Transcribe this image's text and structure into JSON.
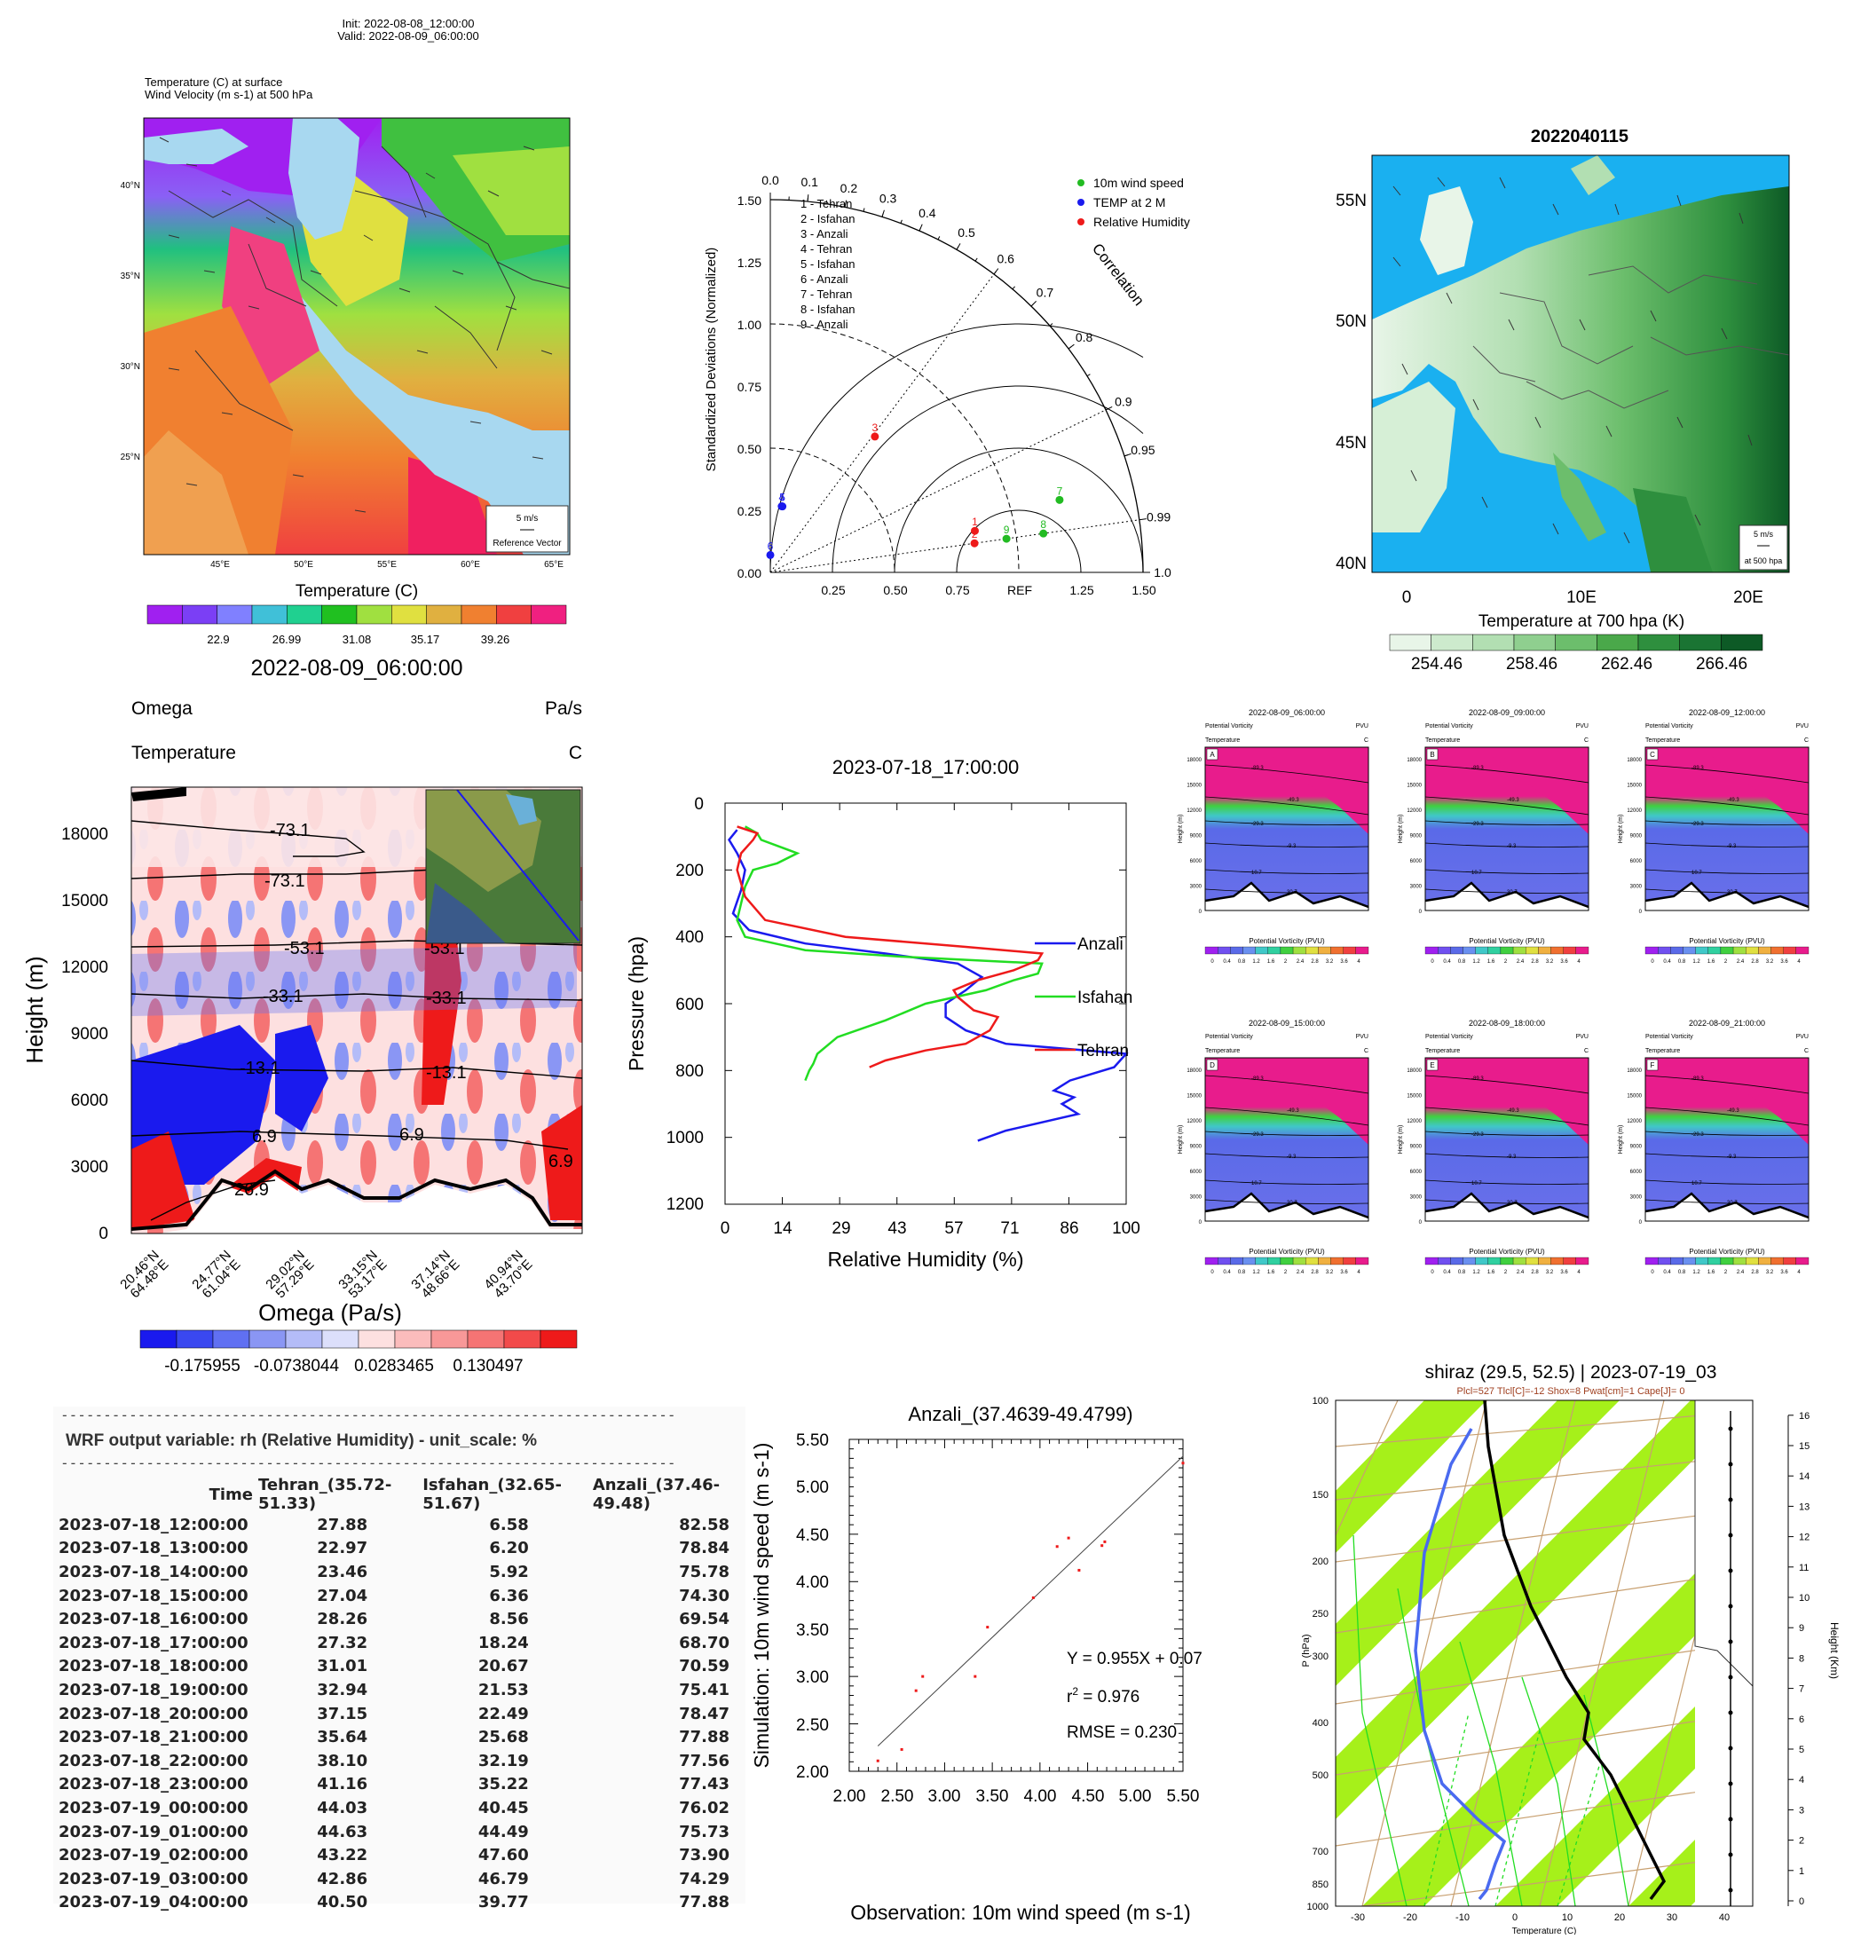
{
  "panel1": {
    "init": "Init: 2022-08-08_12:00:00",
    "valid": "Valid: 2022-08-09_06:00:00",
    "line1": "Temperature   (C)     at   surface",
    "line2": "Wind Velocity   (m s-1)     at    500 hPa",
    "lat_labels": [
      "40°N",
      "35°N",
      "30°N",
      "25°N"
    ],
    "lon_labels": [
      "45°E",
      "50°E",
      "55°E",
      "60°E",
      "65°E"
    ],
    "ref_vector": "5 m/s",
    "ref_vector_label": "Reference Vector",
    "colorbar_title": "Temperature  (C)",
    "colorbar_ticks": [
      "22.9",
      "26.99",
      "31.08",
      "35.17",
      "39.26"
    ],
    "colorbar_colors": [
      "#a020f0",
      "#7b3ff5",
      "#8080ff",
      "#40c0d8",
      "#20d090",
      "#20c020",
      "#a0e040",
      "#e0e040",
      "#e0b040",
      "#f08030",
      "#f04040",
      "#f02080"
    ],
    "time_label": "2022-08-09_06:00:00"
  },
  "panel2": {
    "ylabel": "Standardized Deviations (Normalized)",
    "y_ticks": [
      "0.00",
      "0.25",
      "0.50",
      "0.75",
      "1.00",
      "1.25",
      "1.50"
    ],
    "x_ticks": [
      "0.25",
      "0.50",
      "0.75",
      "REF",
      "1.25",
      "1.50"
    ],
    "corr_ticks": [
      "0.0",
      "0.1",
      "0.2",
      "0.3",
      "0.4",
      "0.5",
      "0.6",
      "0.7",
      "0.8",
      "0.9",
      "0.95",
      "0.99",
      "1.0"
    ],
    "corr_label": "Correlation",
    "stations": [
      "1 - Tehran",
      "2 - Isfahan",
      "3 - Anzali",
      "4 - Tehran",
      "5 - Isfahan",
      "6 - Anzali",
      "7 - Tehran",
      "8 - Isfahan",
      "9 - Anzali"
    ],
    "legend": [
      {
        "label": "10m wind speed",
        "color": "#22bb22"
      },
      {
        "label": "TEMP at 2 M",
        "color": "#1a1aee"
      },
      {
        "label": "Relative Humidity",
        "color": "#ee1a1a"
      }
    ],
    "points": [
      {
        "id": "1",
        "corr": 0.98,
        "std": 0.84,
        "color": "#ee1a1a"
      },
      {
        "id": "2",
        "corr": 0.99,
        "std": 0.83,
        "color": "#ee1a1a"
      },
      {
        "id": "3",
        "corr": 0.61,
        "std": 0.69,
        "color": "#ee1a1a"
      },
      {
        "id": "4",
        "corr": 0.17,
        "std": 0.27,
        "color": "#1a1aee"
      },
      {
        "id": "5",
        "corr": 0.18,
        "std": 0.27,
        "color": "#1a1aee"
      },
      {
        "id": "6",
        "corr": 0.0,
        "std": 0.07,
        "color": "#1a1aee"
      },
      {
        "id": "7",
        "corr": 0.97,
        "std": 1.2,
        "color": "#22bb22"
      },
      {
        "id": "8",
        "corr": 0.99,
        "std": 1.11,
        "color": "#22bb22"
      },
      {
        "id": "9",
        "corr": 0.99,
        "std": 0.96,
        "color": "#22bb22"
      }
    ]
  },
  "panel3": {
    "title": "2022040115",
    "lat_labels": [
      "55N",
      "50N",
      "45N",
      "40N"
    ],
    "lon_labels": [
      "0",
      "10E",
      "20E"
    ],
    "ref_vector": "5 m/s",
    "ref_vector_label": "at 500 hpa",
    "colorbar_title": "Temperature at 700 hpa (K)",
    "colorbar_ticks": [
      "254.46",
      "258.46",
      "262.46",
      "266.46"
    ],
    "colorbar_colors": [
      "#e8f5e8",
      "#cdeacd",
      "#b2dfb2",
      "#8fcf8f",
      "#6cbe6c",
      "#4aa84a",
      "#2e8f3e",
      "#1a7433",
      "#0d5a26"
    ]
  },
  "panel4": {
    "top_left_1": "Omega",
    "top_right_1": "Pa/s",
    "top_left_2": "Temperature",
    "top_right_2": "C",
    "ylabel": "Height (m)",
    "y_ticks": [
      "0",
      "3000",
      "6000",
      "9000",
      "12000",
      "15000",
      "18000"
    ],
    "x_ticks": [
      [
        "20.46°N",
        "64.48°E"
      ],
      [
        "24.77°N",
        "61.04°E"
      ],
      [
        "29.02°N",
        "57.29°E"
      ],
      [
        "33.15°N",
        "53.17°E"
      ],
      [
        "37.14°N",
        "48.66°E"
      ],
      [
        "40.94°N",
        "43.70°E"
      ]
    ],
    "contours": [
      "-73.1",
      "-73.1",
      "-53.1",
      "-53.1",
      "-33.1",
      "-33.1",
      "-13.1",
      "-13.1",
      "6.9",
      "6.9",
      "6.9",
      "26.9"
    ],
    "xlabel": "Omega (Pa/s)",
    "colorbar_ticks": [
      "-0.175955",
      "-0.0738044",
      "0.0283465",
      "0.130497"
    ],
    "colorbar_colors": [
      "#1a1aee",
      "#3a48f0",
      "#6070f2",
      "#8a96f4",
      "#b4bcf8",
      "#dcdffb",
      "#fde0e0",
      "#fbbcbc",
      "#f89898",
      "#f57474",
      "#f24a4a",
      "#ee1a1a"
    ]
  },
  "panel5": {
    "title": "2023-07-18_17:00:00",
    "ylabel": "Pressure (hpa)",
    "xlabel": "Relative Humidity (%)",
    "x_ticks": [
      "0",
      "14",
      "29",
      "43",
      "57",
      "71",
      "86",
      "100"
    ],
    "y_ticks": [
      "0",
      "200",
      "400",
      "600",
      "800",
      "1000",
      "1200"
    ]
  },
  "chart_data": [
    {
      "type": "line",
      "title": "2023-07-18_17:00:00",
      "xlabel": "Relative Humidity (%)",
      "ylabel": "Pressure (hpa)",
      "xlim": [
        0,
        100
      ],
      "ylim": [
        1200,
        0
      ],
      "series": [
        {
          "name": "Anzali",
          "color": "#1a1aee",
          "rh": [
            3,
            1,
            3,
            5,
            4,
            2,
            6,
            20,
            40,
            58,
            64,
            60,
            55,
            55,
            60,
            70,
            100,
            97,
            86,
            82,
            87,
            84,
            88,
            70,
            63
          ],
          "p": [
            80,
            110,
            150,
            200,
            260,
            330,
            380,
            420,
            450,
            480,
            520,
            560,
            600,
            640,
            680,
            720,
            750,
            790,
            830,
            860,
            880,
            900,
            930,
            980,
            1010
          ]
        },
        {
          "name": "Isfahan",
          "color": "#22dd22",
          "rh": [
            5,
            8,
            9,
            18,
            13,
            7,
            5,
            4,
            3,
            5,
            20,
            45,
            79,
            78,
            72,
            65,
            50,
            40,
            28,
            23,
            22,
            21,
            20
          ],
          "p": [
            70,
            90,
            110,
            150,
            180,
            200,
            250,
            300,
            350,
            400,
            440,
            460,
            480,
            510,
            530,
            560,
            600,
            650,
            700,
            750,
            780,
            800,
            830
          ]
        },
        {
          "name": "Tehran",
          "color": "#ee1a1a",
          "rh": [
            3,
            8,
            7,
            4,
            3,
            5,
            10,
            30,
            60,
            79,
            78,
            72,
            63,
            57,
            58,
            60,
            62,
            68,
            66,
            60,
            50,
            40,
            36
          ],
          "p": [
            70,
            90,
            110,
            150,
            200,
            280,
            350,
            400,
            430,
            450,
            470,
            500,
            530,
            560,
            580,
            600,
            620,
            640,
            680,
            720,
            740,
            770,
            790
          ]
        }
      ]
    },
    {
      "type": "scatter",
      "title": "Anzali_(37.4639-49.4799)",
      "xlabel": "Observation: 10m wind speed (m s-1)",
      "ylabel": "Simulation: 10m wind speed (m s-1)",
      "xlim": [
        2.0,
        5.5
      ],
      "ylim": [
        2.0,
        5.5
      ],
      "x": [
        2.3,
        2.55,
        2.7,
        2.77,
        3.32,
        3.45,
        3.93,
        4.18,
        4.3,
        4.41,
        4.65,
        4.68,
        5.5
      ],
      "y": [
        2.11,
        2.23,
        2.85,
        3.0,
        3.0,
        3.52,
        3.83,
        4.37,
        4.46,
        4.12,
        4.38,
        4.42,
        5.25
      ],
      "fit": {
        "slope": 0.955,
        "intercept": 0.07
      }
    }
  ],
  "panel6": {
    "subplots": [
      {
        "letter": "A",
        "time": "2022-08-09_06:00:00"
      },
      {
        "letter": "B",
        "time": "2022-08-09_09:00:00"
      },
      {
        "letter": "C",
        "time": "2022-08-09_12:00:00"
      },
      {
        "letter": "D",
        "time": "2022-08-09_15:00:00"
      },
      {
        "letter": "E",
        "time": "2022-08-09_18:00:00"
      },
      {
        "letter": "F",
        "time": "2022-08-09_21:00:00"
      }
    ],
    "left1": "Potential Vorticity",
    "right1": "PVU",
    "left2": "Temperature",
    "right2": "C",
    "ylabel": "Height (m)",
    "y_ticks": [
      "0",
      "3000",
      "6000",
      "9000",
      "12000",
      "15000",
      "18000"
    ],
    "xlabel": "Potential Vorticity (PVU)",
    "cb_ticks": [
      "0",
      "0.4",
      "0.8",
      "1.2",
      "1.6",
      "2",
      "2.4",
      "2.8",
      "3.2",
      "3.6",
      "4"
    ],
    "contours": [
      "-89.3",
      "-69.3",
      "-49.3",
      "-29.3",
      "-9.3",
      "10.7",
      "30.7"
    ]
  },
  "table": {
    "dashes": "------------------------------------------------------------------------",
    "header_line": "WRF output variable: rh (Relative Humidity) - unit_scale: %",
    "columns": [
      "Time",
      "Tehran_(35.72-51.33)",
      "Isfahan_(32.65-51.67)",
      "Anzali_(37.46-49.48)"
    ],
    "rows": [
      [
        "2023-07-18_12:00:00",
        "27.88",
        "6.58",
        "82.58"
      ],
      [
        "2023-07-18_13:00:00",
        "22.97",
        "6.20",
        "78.84"
      ],
      [
        "2023-07-18_14:00:00",
        "23.46",
        "5.92",
        "75.78"
      ],
      [
        "2023-07-18_15:00:00",
        "27.04",
        "6.36",
        "74.30"
      ],
      [
        "2023-07-18_16:00:00",
        "28.26",
        "8.56",
        "69.54"
      ],
      [
        "2023-07-18_17:00:00",
        "27.32",
        "18.24",
        "68.70"
      ],
      [
        "2023-07-18_18:00:00",
        "31.01",
        "20.67",
        "70.59"
      ],
      [
        "2023-07-18_19:00:00",
        "32.94",
        "21.53",
        "75.41"
      ],
      [
        "2023-07-18_20:00:00",
        "37.15",
        "22.49",
        "78.47"
      ],
      [
        "2023-07-18_21:00:00",
        "35.64",
        "25.68",
        "77.88"
      ],
      [
        "2023-07-18_22:00:00",
        "38.10",
        "32.19",
        "77.56"
      ],
      [
        "2023-07-18_23:00:00",
        "41.16",
        "35.22",
        "77.43"
      ],
      [
        "2023-07-19_00:00:00",
        "44.03",
        "40.45",
        "76.02"
      ],
      [
        "2023-07-19_01:00:00",
        "44.63",
        "44.49",
        "75.73"
      ],
      [
        "2023-07-19_02:00:00",
        "43.22",
        "47.60",
        "73.90"
      ],
      [
        "2023-07-19_03:00:00",
        "42.86",
        "46.79",
        "74.29"
      ],
      [
        "2023-07-19_04:00:00",
        "40.50",
        "39.77",
        "77.88"
      ]
    ]
  },
  "panel8": {
    "title": "Anzali_(37.4639-49.4799)",
    "x_ticks": [
      "2.00",
      "2.50",
      "3.00",
      "3.50",
      "4.00",
      "4.50",
      "5.00",
      "5.50"
    ],
    "y_ticks": [
      "2.00",
      "2.50",
      "3.00",
      "3.50",
      "4.00",
      "4.50",
      "5.00",
      "5.50"
    ],
    "eq": "Y = 0.955X +  0.07",
    "r2_label": "r",
    "r2_sup": "2",
    "r2_value": " = 0.976",
    "rmse": "RMSE = 0.230"
  },
  "panel9": {
    "title": "shiraz (29.5, 52.5) | 2023-07-19_03",
    "subtitle": "Plcl=527 Tlcl[C]=-12 Shox=8 Pwat[cm]=1 Cape[J]= 0",
    "ylabel": "P (hPa)",
    "xlabel": "Temperature (C)",
    "right_label": "Height (Km)",
    "p_ticks": [
      "100",
      "150",
      "200",
      "250",
      "300",
      "400",
      "500",
      "700",
      "850",
      "1000"
    ],
    "t_ticks": [
      "-30",
      "-20",
      "-10",
      "0",
      "10",
      "20",
      "30",
      "40"
    ],
    "h_ticks": [
      "0",
      "1",
      "2",
      "3",
      "4",
      "5",
      "6",
      "7",
      "8",
      "9",
      "10",
      "11",
      "12",
      "13",
      "14",
      "15",
      "16"
    ]
  }
}
